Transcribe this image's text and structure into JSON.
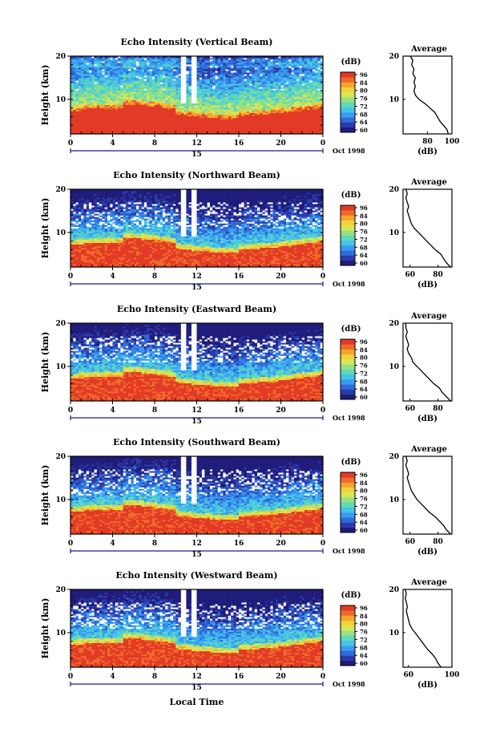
{
  "figure": {
    "xlabel": "Local Time",
    "date_label": "Oct 1998",
    "day_label": "15",
    "colorbar_label": "(dB)",
    "average_title": "Average",
    "average_xlabel": "(dB)",
    "height_label": "Height (km)"
  },
  "colors": {
    "scale": [
      "#1e1b7a",
      "#2c3aa8",
      "#2f6bd9",
      "#3a9cf0",
      "#45c4e8",
      "#5fd9b8",
      "#98e07f",
      "#d6e65a",
      "#f2d23a",
      "#f5a52e",
      "#ef6a2a",
      "#e23a26"
    ],
    "missing": "#ffffff"
  },
  "chart_data": [
    {
      "type": "heatmap",
      "title": "Echo Intensity (Vertical Beam)",
      "beam": "vertical",
      "xlabel": "Local Time",
      "ylabel": "Height (km)",
      "x_ticks": [
        "0",
        "4",
        "8",
        "12",
        "16",
        "20",
        "0"
      ],
      "xlim": [
        0,
        24
      ],
      "y_ticks": [
        "10",
        "20"
      ],
      "ylim": [
        2,
        20
      ],
      "colorbar_ticks": [
        "96",
        "84",
        "80",
        "76",
        "72",
        "68",
        "64",
        "60"
      ],
      "colorbar_range": [
        60,
        96
      ],
      "average": {
        "title": "Average",
        "x_ticks": [
          "80",
          "100"
        ],
        "xlim": [
          60,
          100
        ],
        "ylim": [
          2,
          20
        ],
        "profile": [
          [
            97,
            2
          ],
          [
            96,
            3
          ],
          [
            93,
            4
          ],
          [
            90,
            5
          ],
          [
            88,
            6
          ],
          [
            86,
            7
          ],
          [
            82,
            8
          ],
          [
            78,
            9
          ],
          [
            73,
            10
          ],
          [
            70,
            11
          ],
          [
            69,
            12
          ],
          [
            70,
            13
          ],
          [
            69,
            14
          ],
          [
            70,
            15
          ],
          [
            68,
            16
          ],
          [
            69,
            17
          ],
          [
            67,
            18
          ],
          [
            68,
            19
          ],
          [
            66,
            20
          ]
        ]
      }
    },
    {
      "type": "heatmap",
      "title": "Echo Intensity (Northward Beam)",
      "beam": "northward",
      "xlabel": "Local Time",
      "ylabel": "Height (km)",
      "x_ticks": [
        "0",
        "4",
        "8",
        "12",
        "16",
        "20",
        "0"
      ],
      "xlim": [
        0,
        24
      ],
      "y_ticks": [
        "10",
        "20"
      ],
      "ylim": [
        2,
        20
      ],
      "colorbar_ticks": [
        "96",
        "84",
        "80",
        "76",
        "72",
        "68",
        "64",
        "60"
      ],
      "colorbar_range": [
        60,
        96
      ],
      "average": {
        "title": "Average",
        "x_ticks": [
          "60",
          "80"
        ],
        "xlim": [
          55,
          90
        ],
        "ylim": [
          2,
          20
        ],
        "profile": [
          [
            89,
            2
          ],
          [
            86,
            3
          ],
          [
            84,
            4
          ],
          [
            82,
            5
          ],
          [
            78,
            6
          ],
          [
            75,
            7
          ],
          [
            72,
            8
          ],
          [
            69,
            9
          ],
          [
            66,
            10
          ],
          [
            63,
            11
          ],
          [
            61,
            12
          ],
          [
            60,
            13
          ],
          [
            59,
            14
          ],
          [
            58,
            15
          ],
          [
            59,
            16
          ],
          [
            58,
            17
          ],
          [
            57,
            18
          ],
          [
            58,
            19
          ],
          [
            57,
            20
          ]
        ]
      }
    },
    {
      "type": "heatmap",
      "title": "Echo Intensity (Eastward Beam)",
      "beam": "eastward",
      "xlabel": "Local Time",
      "ylabel": "Height (km)",
      "x_ticks": [
        "0",
        "4",
        "8",
        "12",
        "16",
        "20",
        "0"
      ],
      "xlim": [
        0,
        24
      ],
      "y_ticks": [
        "10",
        "20"
      ],
      "ylim": [
        2,
        20
      ],
      "colorbar_ticks": [
        "96",
        "84",
        "80",
        "76",
        "72",
        "68",
        "64",
        "60"
      ],
      "colorbar_range": [
        60,
        96
      ],
      "average": {
        "title": "Average",
        "x_ticks": [
          "60",
          "80"
        ],
        "xlim": [
          55,
          90
        ],
        "ylim": [
          2,
          20
        ],
        "profile": [
          [
            89,
            2
          ],
          [
            86,
            3
          ],
          [
            83,
            4
          ],
          [
            81,
            5
          ],
          [
            77,
            6
          ],
          [
            74,
            7
          ],
          [
            71,
            8
          ],
          [
            68,
            9
          ],
          [
            65,
            10
          ],
          [
            62,
            11
          ],
          [
            61,
            12
          ],
          [
            59,
            13
          ],
          [
            58,
            14
          ],
          [
            59,
            15
          ],
          [
            58,
            16
          ],
          [
            57,
            17
          ],
          [
            58,
            18
          ],
          [
            57,
            19
          ],
          [
            57,
            20
          ]
        ]
      }
    },
    {
      "type": "heatmap",
      "title": "Echo Intensity (Southward Beam)",
      "beam": "southward",
      "xlabel": "Local Time",
      "ylabel": "Height (km)",
      "x_ticks": [
        "0",
        "4",
        "8",
        "12",
        "16",
        "20",
        "0"
      ],
      "xlim": [
        0,
        24
      ],
      "y_ticks": [
        "10",
        "20"
      ],
      "ylim": [
        2,
        20
      ],
      "colorbar_ticks": [
        "96",
        "84",
        "80",
        "76",
        "72",
        "68",
        "64",
        "60"
      ],
      "colorbar_range": [
        60,
        96
      ],
      "average": {
        "title": "Average",
        "x_ticks": [
          "60",
          "80"
        ],
        "xlim": [
          55,
          90
        ],
        "ylim": [
          2,
          20
        ],
        "profile": [
          [
            89,
            2
          ],
          [
            86,
            3
          ],
          [
            84,
            4
          ],
          [
            81,
            5
          ],
          [
            78,
            6
          ],
          [
            74,
            7
          ],
          [
            71,
            8
          ],
          [
            68,
            9
          ],
          [
            65,
            10
          ],
          [
            63,
            11
          ],
          [
            61,
            12
          ],
          [
            60,
            13
          ],
          [
            59,
            14
          ],
          [
            58,
            15
          ],
          [
            59,
            16
          ],
          [
            58,
            17
          ],
          [
            57,
            18
          ],
          [
            58,
            19
          ],
          [
            57,
            20
          ]
        ]
      }
    },
    {
      "type": "heatmap",
      "title": "Echo Intensity (Westward Beam)",
      "beam": "westward",
      "xlabel": "Local Time",
      "ylabel": "Height (km)",
      "x_ticks": [
        "0",
        "4",
        "8",
        "12",
        "16",
        "20",
        "0"
      ],
      "xlim": [
        0,
        24
      ],
      "y_ticks": [
        "10",
        "20"
      ],
      "ylim": [
        2,
        20
      ],
      "colorbar_ticks": [
        "96",
        "84",
        "80",
        "76",
        "72",
        "68",
        "64",
        "60"
      ],
      "colorbar_range": [
        60,
        96
      ],
      "average": {
        "title": "Average",
        "x_ticks": [
          "60",
          "100"
        ],
        "xlim": [
          55,
          100
        ],
        "ylim": [
          2,
          20
        ],
        "profile": [
          [
            90,
            2
          ],
          [
            87,
            3
          ],
          [
            85,
            4
          ],
          [
            82,
            5
          ],
          [
            78,
            6
          ],
          [
            75,
            7
          ],
          [
            72,
            8
          ],
          [
            69,
            9
          ],
          [
            66,
            10
          ],
          [
            63,
            11
          ],
          [
            61,
            12
          ],
          [
            60,
            13
          ],
          [
            59,
            14
          ],
          [
            58,
            15
          ],
          [
            59,
            16
          ],
          [
            58,
            17
          ],
          [
            57,
            18
          ],
          [
            58,
            19
          ],
          [
            57,
            20
          ]
        ]
      }
    }
  ]
}
